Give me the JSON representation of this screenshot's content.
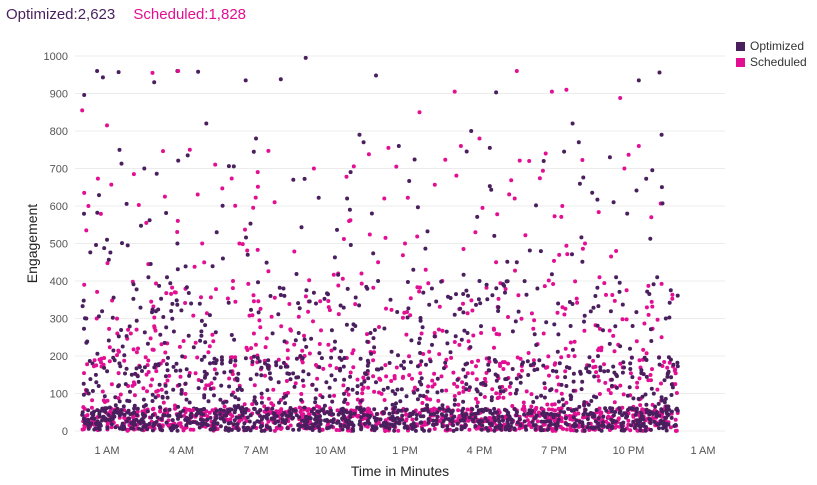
{
  "header": {
    "optimized_label": "Optimized:2,623",
    "scheduled_label": "Scheduled:1,828"
  },
  "colors": {
    "optimized": "#4a1f5e",
    "scheduled": "#e20f93"
  },
  "chart_data": {
    "type": "scatter",
    "title": "",
    "xlabel": "Time in Minutes",
    "ylabel": "Engagement",
    "ylim": [
      0,
      1000
    ],
    "yticks": [
      0,
      100,
      200,
      300,
      400,
      500,
      600,
      700,
      800,
      900,
      1000
    ],
    "xlim_minutes": [
      0,
      1440
    ],
    "xticks": [
      {
        "label": "1 AM",
        "minute": 60
      },
      {
        "label": "4 AM",
        "minute": 240
      },
      {
        "label": "7 AM",
        "minute": 420
      },
      {
        "label": "10 AM",
        "minute": 600
      },
      {
        "label": "1 PM",
        "minute": 780
      },
      {
        "label": "4 PM",
        "minute": 960
      },
      {
        "label": "7 PM",
        "minute": 1140
      },
      {
        "label": "10 PM",
        "minute": 1320
      },
      {
        "label": "1 AM",
        "minute": 1500
      }
    ],
    "grid": true,
    "legend_position": "top-right",
    "series": [
      {
        "name": "Optimized",
        "color": "#4a1f5e",
        "count": 2623,
        "points": [
          [
            5,
            896
          ],
          [
            36,
            960
          ],
          [
            50,
            943
          ],
          [
            88,
            957
          ],
          [
            174,
            930
          ],
          [
            230,
            960
          ],
          [
            280,
            958
          ],
          [
            395,
            935
          ],
          [
            480,
            938
          ],
          [
            540,
            995
          ],
          [
            710,
            948
          ],
          [
            1000,
            903
          ],
          [
            1185,
            820
          ],
          [
            1345,
            935
          ],
          [
            1395,
            956
          ],
          [
            95,
            713
          ],
          [
            150,
            700
          ],
          [
            180,
            686
          ],
          [
            255,
            735
          ],
          [
            300,
            820
          ],
          [
            420,
            780
          ],
          [
            670,
            790
          ],
          [
            680,
            770
          ],
          [
            640,
            620
          ],
          [
            700,
            580
          ],
          [
            765,
            760
          ],
          [
            940,
            800
          ],
          [
            985,
            755
          ],
          [
            1115,
            720
          ],
          [
            1200,
            770
          ],
          [
            1275,
            730
          ],
          [
            1400,
            790
          ],
          [
            10,
            300
          ],
          [
            25,
            180
          ],
          [
            60,
            510
          ],
          [
            110,
            495
          ],
          [
            160,
            410
          ],
          [
            205,
            410
          ],
          [
            215,
            320
          ],
          [
            230,
            500
          ],
          [
            325,
            530
          ],
          [
            340,
            460
          ],
          [
            400,
            470
          ],
          [
            455,
            360
          ],
          [
            510,
            670
          ],
          [
            565,
            340
          ],
          [
            610,
            220
          ],
          [
            660,
            280
          ],
          [
            715,
            400
          ],
          [
            745,
            350
          ],
          [
            800,
            430
          ],
          [
            845,
            380
          ],
          [
            900,
            310
          ],
          [
            960,
            400
          ],
          [
            1005,
            320
          ],
          [
            1050,
            450
          ],
          [
            1100,
            380
          ],
          [
            1150,
            340
          ],
          [
            1180,
            280
          ],
          [
            1240,
            360
          ],
          [
            1290,
            410
          ],
          [
            1330,
            280
          ],
          [
            1375,
            240
          ],
          [
            1410,
            300
          ],
          [
            40,
            120
          ],
          [
            80,
            90
          ],
          [
            120,
            150
          ],
          [
            170,
            80
          ],
          [
            220,
            110
          ],
          [
            270,
            60
          ],
          [
            320,
            140
          ],
          [
            370,
            90
          ],
          [
            430,
            40
          ],
          [
            480,
            170
          ],
          [
            530,
            60
          ],
          [
            590,
            130
          ],
          [
            640,
            50
          ],
          [
            690,
            160
          ],
          [
            750,
            70
          ],
          [
            810,
            110
          ],
          [
            870,
            40
          ],
          [
            930,
            180
          ],
          [
            990,
            90
          ],
          [
            1050,
            140
          ],
          [
            1110,
            60
          ],
          [
            1170,
            120
          ],
          [
            1230,
            80
          ],
          [
            1290,
            150
          ],
          [
            1350,
            50
          ],
          [
            1400,
            90
          ],
          [
            60,
            30
          ],
          [
            140,
            20
          ],
          [
            230,
            15
          ],
          [
            310,
            35
          ],
          [
            390,
            10
          ],
          [
            470,
            25
          ],
          [
            550,
            20
          ],
          [
            630,
            30
          ],
          [
            710,
            15
          ],
          [
            790,
            40
          ],
          [
            870,
            20
          ],
          [
            950,
            10
          ],
          [
            1030,
            30
          ],
          [
            1110,
            25
          ],
          [
            1190,
            15
          ],
          [
            1270,
            35
          ],
          [
            1350,
            20
          ],
          [
            1410,
            10
          ]
        ]
      },
      {
        "name": "Scheduled",
        "color": "#e20f93",
        "count": 1828,
        "points": [
          [
            0,
            855
          ],
          [
            5,
            635
          ],
          [
            10,
            535
          ],
          [
            15,
            600
          ],
          [
            5,
            390
          ],
          [
            60,
            815
          ],
          [
            170,
            955
          ],
          [
            232,
            960
          ],
          [
            450,
            747
          ],
          [
            740,
            755
          ],
          [
            815,
            850
          ],
          [
            900,
            905
          ],
          [
            960,
            780
          ],
          [
            1050,
            960
          ],
          [
            1135,
            905
          ],
          [
            1170,
            910
          ],
          [
            1300,
            888
          ],
          [
            125,
            685
          ],
          [
            155,
            555
          ],
          [
            200,
            625
          ],
          [
            260,
            750
          ],
          [
            290,
            500
          ],
          [
            380,
            500
          ],
          [
            465,
            610
          ],
          [
            560,
            700
          ],
          [
            645,
            560
          ],
          [
            675,
            420
          ],
          [
            715,
            450
          ],
          [
            730,
            620
          ],
          [
            780,
            500
          ],
          [
            830,
            430
          ],
          [
            870,
            400
          ],
          [
            915,
            760
          ],
          [
            950,
            530
          ],
          [
            1000,
            450
          ],
          [
            1045,
            620
          ],
          [
            1080,
            720
          ],
          [
            1120,
            740
          ],
          [
            1160,
            600
          ],
          [
            1215,
            500
          ],
          [
            1250,
            410
          ],
          [
            1290,
            480
          ],
          [
            1310,
            700
          ],
          [
            1345,
            760
          ],
          [
            1375,
            570
          ],
          [
            35,
            300
          ],
          [
            85,
            260
          ],
          [
            135,
            220
          ],
          [
            190,
            180
          ],
          [
            245,
            240
          ],
          [
            305,
            210
          ],
          [
            355,
            140
          ],
          [
            415,
            260
          ],
          [
            475,
            190
          ],
          [
            535,
            120
          ],
          [
            595,
            230
          ],
          [
            655,
            170
          ],
          [
            705,
            210
          ],
          [
            755,
            140
          ],
          [
            820,
            260
          ],
          [
            880,
            190
          ],
          [
            935,
            220
          ],
          [
            995,
            270
          ],
          [
            1055,
            150
          ],
          [
            1115,
            260
          ],
          [
            1175,
            200
          ],
          [
            1235,
            170
          ],
          [
            1295,
            230
          ],
          [
            1355,
            190
          ],
          [
            1400,
            250
          ],
          [
            70,
            60
          ],
          [
            150,
            40
          ],
          [
            250,
            50
          ],
          [
            350,
            30
          ],
          [
            450,
            60
          ],
          [
            550,
            45
          ],
          [
            650,
            55
          ],
          [
            750,
            35
          ],
          [
            850,
            60
          ],
          [
            950,
            40
          ],
          [
            1050,
            55
          ],
          [
            1150,
            45
          ],
          [
            1250,
            60
          ],
          [
            1350,
            35
          ]
        ]
      }
    ]
  }
}
